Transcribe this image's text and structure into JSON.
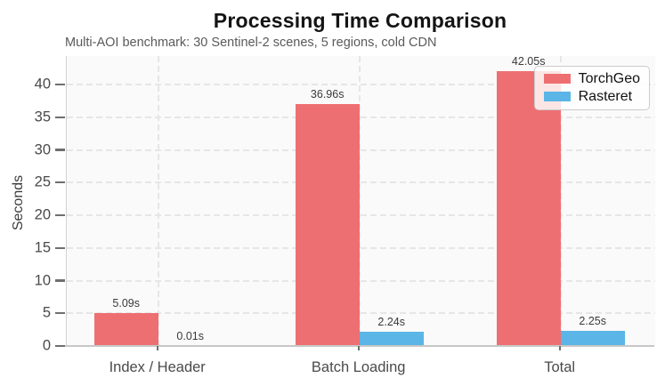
{
  "chart": {
    "title": "Processing Time Comparison",
    "subtitle": "Multi-AOI benchmark: 30 Sentinel-2 scenes, 5 regions, cold CDN",
    "ylabel": "Seconds"
  },
  "chart_data": {
    "type": "bar",
    "title": "Processing Time Comparison",
    "subtitle": "Multi-AOI benchmark: 30 Sentinel-2 scenes, 5 regions, cold CDN",
    "categories": [
      "Index / Header",
      "Batch Loading",
      "Total"
    ],
    "series": [
      {
        "name": "TorchGeo",
        "color": "#ee6f72",
        "values": [
          5.09,
          36.96,
          42.05
        ],
        "value_labels": [
          "5.09s",
          "36.96s",
          "42.05s"
        ]
      },
      {
        "name": "Rasteret",
        "color": "#5bb5e6",
        "values": [
          0.01,
          2.24,
          2.25
        ],
        "value_labels": [
          "0.01s",
          "2.24s",
          "2.25s"
        ]
      }
    ],
    "xlabel": "",
    "ylabel": "Seconds",
    "yticks": [
      0,
      5,
      10,
      15,
      20,
      25,
      30,
      35,
      40
    ],
    "ylim": [
      0,
      44.35
    ],
    "grid": "dashed, horizontal at ticks and vertical at category centers",
    "legend_position": "upper right",
    "colors": {
      "plot_background": "#fafafa",
      "gridline": "#e6e6e6",
      "axis_spine": "#c7c7c7",
      "tick_mark": "#6f6f6f"
    }
  }
}
